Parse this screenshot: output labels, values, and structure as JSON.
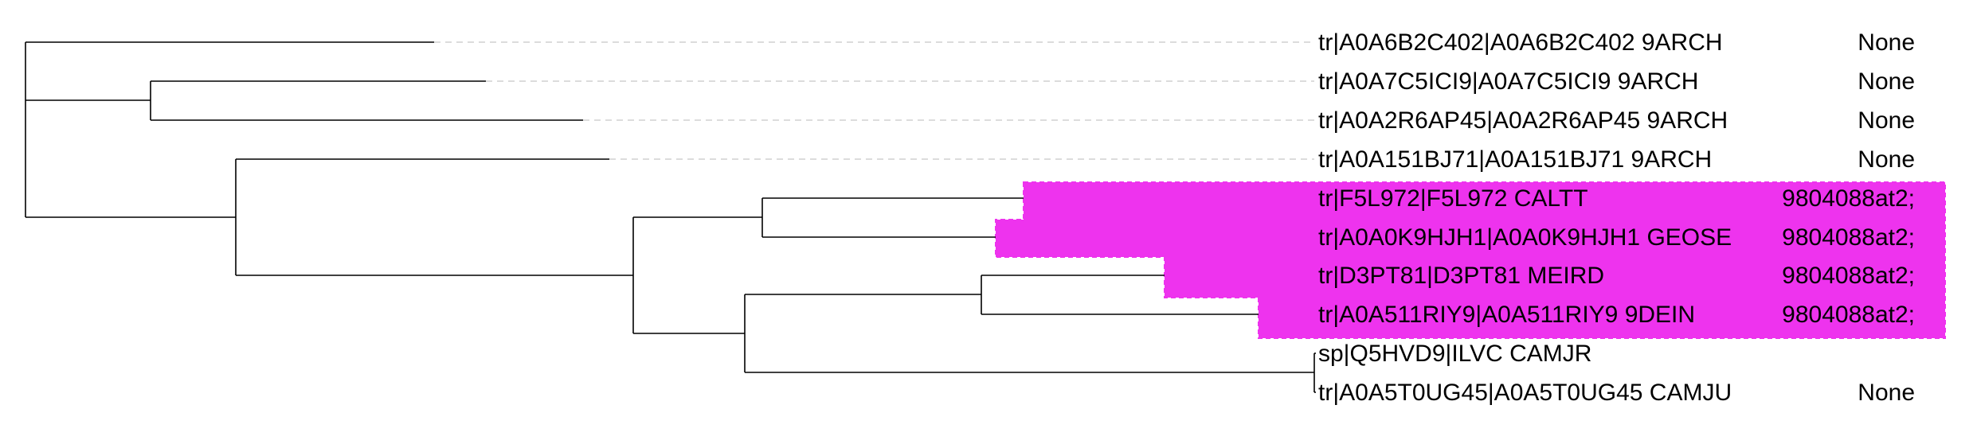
{
  "tree": {
    "leaves": [
      {
        "label": "tr|A0A6B2C402|A0A6B2C402 9ARCH",
        "annotation": "None",
        "highlighted": false
      },
      {
        "label": "tr|A0A7C5ICI9|A0A7C5ICI9 9ARCH",
        "annotation": "None",
        "highlighted": false
      },
      {
        "label": "tr|A0A2R6AP45|A0A2R6AP45 9ARCH",
        "annotation": "None",
        "highlighted": false
      },
      {
        "label": "tr|A0A151BJ71|A0A151BJ71 9ARCH",
        "annotation": "None",
        "highlighted": false
      },
      {
        "label": "tr|F5L972|F5L972 CALTT",
        "annotation": "9804088at2;",
        "highlighted": true
      },
      {
        "label": "tr|A0A0K9HJH1|A0A0K9HJH1 GEOSE",
        "annotation": "9804088at2;",
        "highlighted": true
      },
      {
        "label": "tr|D3PT81|D3PT81 MEIRD",
        "annotation": "9804088at2;",
        "highlighted": true
      },
      {
        "label": "tr|A0A511RIY9|A0A511RIY9 9DEIN",
        "annotation": "9804088at2;",
        "highlighted": true
      },
      {
        "label": "sp|Q5HVD9|ILVC CAMJR",
        "annotation": "",
        "highlighted": false
      },
      {
        "label": "tr|A0A5T0UG45|A0A5T0UG45 CAMJU",
        "annotation": "None",
        "highlighted": false
      }
    ],
    "highlight_color": "#ee33ee"
  }
}
